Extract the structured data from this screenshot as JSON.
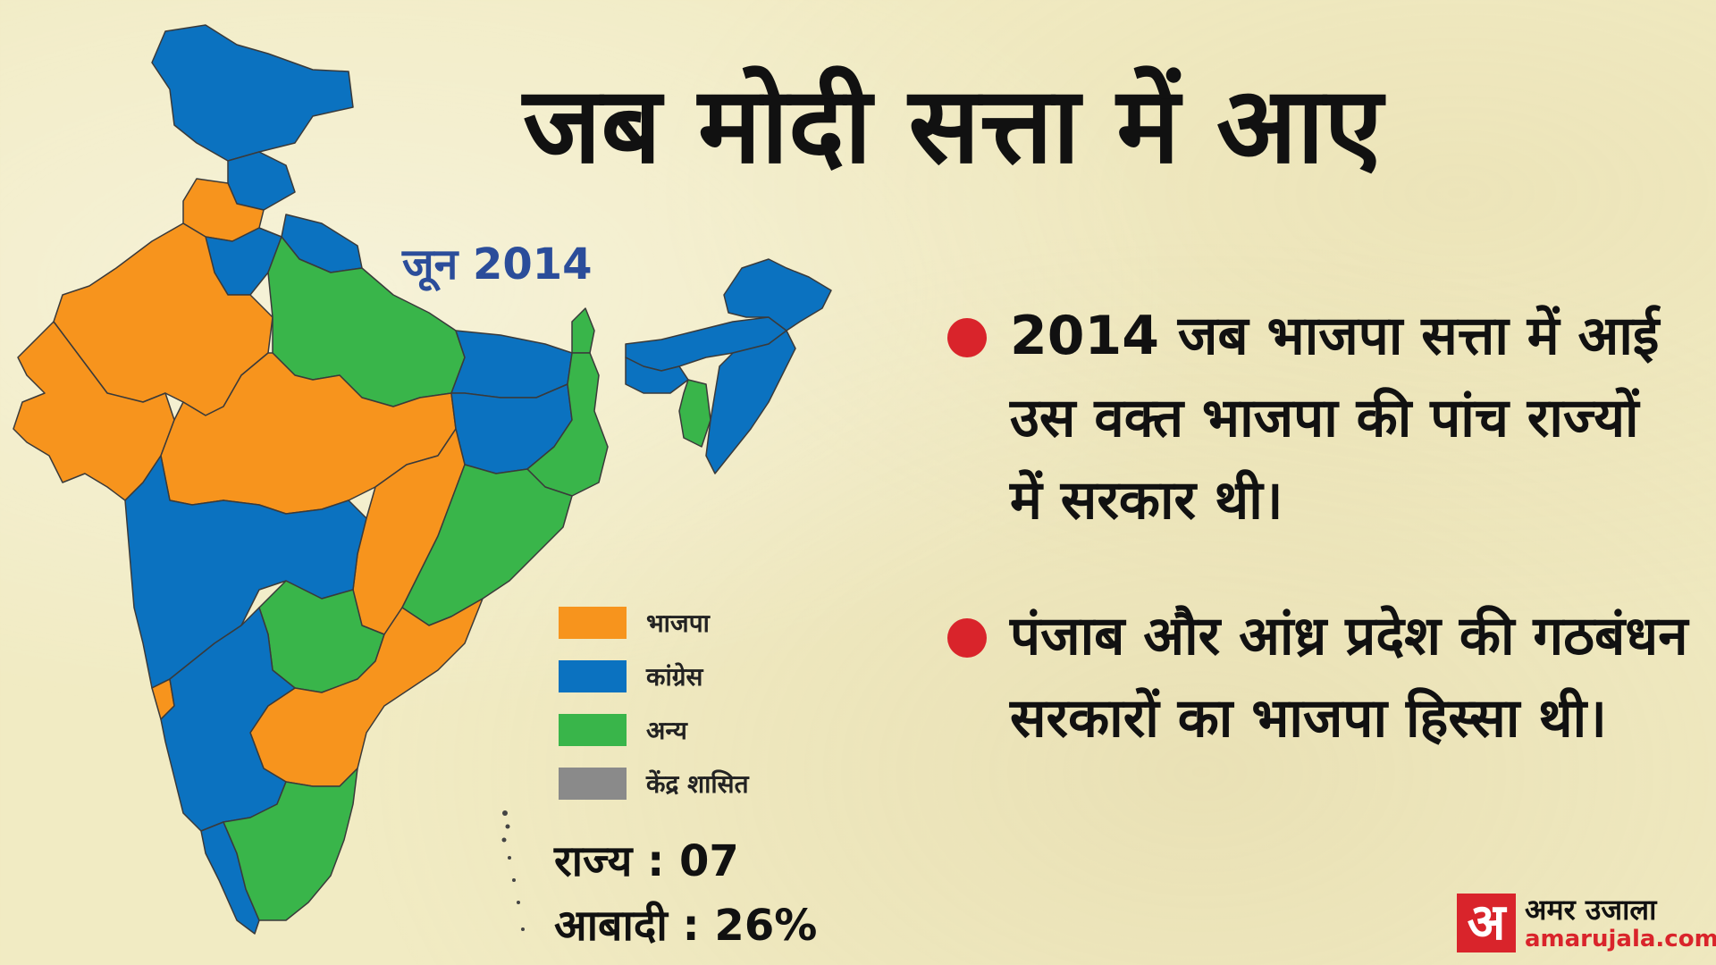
{
  "title": "जब मोदी सत्ता में आए",
  "subtitle": "जून 2014",
  "bullets": [
    "2014 जब भाजपा सत्ता में आई उस वक्त भाजपा की पांच राज्यों में सरकार थी।",
    "पंजाब और आंध्र प्रदेश की गठबंधन सरकारों का भाजपा हिस्सा थी।"
  ],
  "legend": [
    {
      "label": "भाजपा",
      "color": "#f7941d"
    },
    {
      "label": "कांग्रेस",
      "color": "#0b72c0"
    },
    {
      "label": "अन्य",
      "color": "#39b54a"
    },
    {
      "label": "केंद्र शासित",
      "color": "#8a8a8a"
    }
  ],
  "stats": {
    "states": "राज्य : 07",
    "population": "आबादी : 26%"
  },
  "logo": {
    "mark": "अ",
    "name": "अमर उजाला",
    "url": "amarujala.com"
  },
  "colors": {
    "accent": "#d9242b",
    "subtitle": "#2b4d9a",
    "background": "#f1ebc3"
  }
}
